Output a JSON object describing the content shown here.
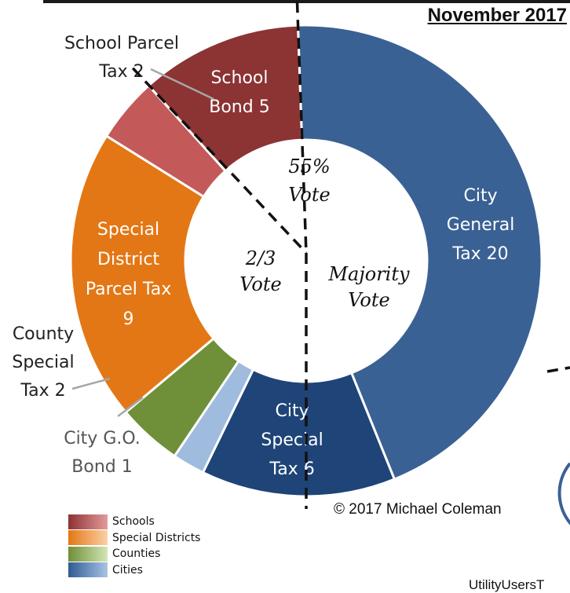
{
  "title": "November 2017",
  "copyright": "© 2017 Michael Coleman",
  "cut_off_text": "UtilityUsersT",
  "chart_data": {
    "type": "donut",
    "title": "November 2017",
    "start_angle_deg": -42,
    "slices": [
      {
        "label": [
          "School",
          "Bond 5"
        ],
        "value": 5,
        "color": "#8c3334",
        "label_pos": "inside",
        "category": "Schools"
      },
      {
        "label": [
          "City",
          "General",
          "Tax 20"
        ],
        "value": 20,
        "color": "#3a6194",
        "label_pos": "inside",
        "category": "Cities"
      },
      {
        "label": [
          "City",
          "Special",
          "Tax 6"
        ],
        "value": 6,
        "color": "#1e4478",
        "label_pos": "inside",
        "category": "Cities"
      },
      {
        "label": [
          "City G.O.",
          "Bond 1"
        ],
        "value": 1,
        "color": "#9fbbde",
        "label_pos": "callout",
        "category": "Cities"
      },
      {
        "label": [
          "County",
          "Special",
          "Tax 2"
        ],
        "value": 2,
        "color": "#6f8f39",
        "label_pos": "callout",
        "category": "Counties"
      },
      {
        "label": [
          "Special",
          "District",
          "Parcel Tax",
          "9"
        ],
        "value": 9,
        "color": "#e37715",
        "label_pos": "inside",
        "category": "Special Districts"
      },
      {
        "label": [
          "School Parcel",
          "Tax 2"
        ],
        "value": 2,
        "color": "#c4595a",
        "label_pos": "callout",
        "category": "Schools"
      }
    ],
    "vote_zones": [
      {
        "label": [
          "55%",
          "Vote"
        ]
      },
      {
        "label": [
          "2/3",
          "Vote"
        ]
      },
      {
        "label": [
          "Majority",
          "Vote"
        ]
      }
    ],
    "legend": [
      {
        "label": "Schools",
        "colors": [
          "#8c3334",
          "#e49a9a"
        ]
      },
      {
        "label": "Special Districts",
        "colors": [
          "#e37715",
          "#fbd0a4"
        ]
      },
      {
        "label": "Counties",
        "colors": [
          "#6f8f39",
          "#d3e6b4"
        ]
      },
      {
        "label": "Cities",
        "colors": [
          "#2f5b92",
          "#a9c3e4"
        ]
      }
    ]
  }
}
